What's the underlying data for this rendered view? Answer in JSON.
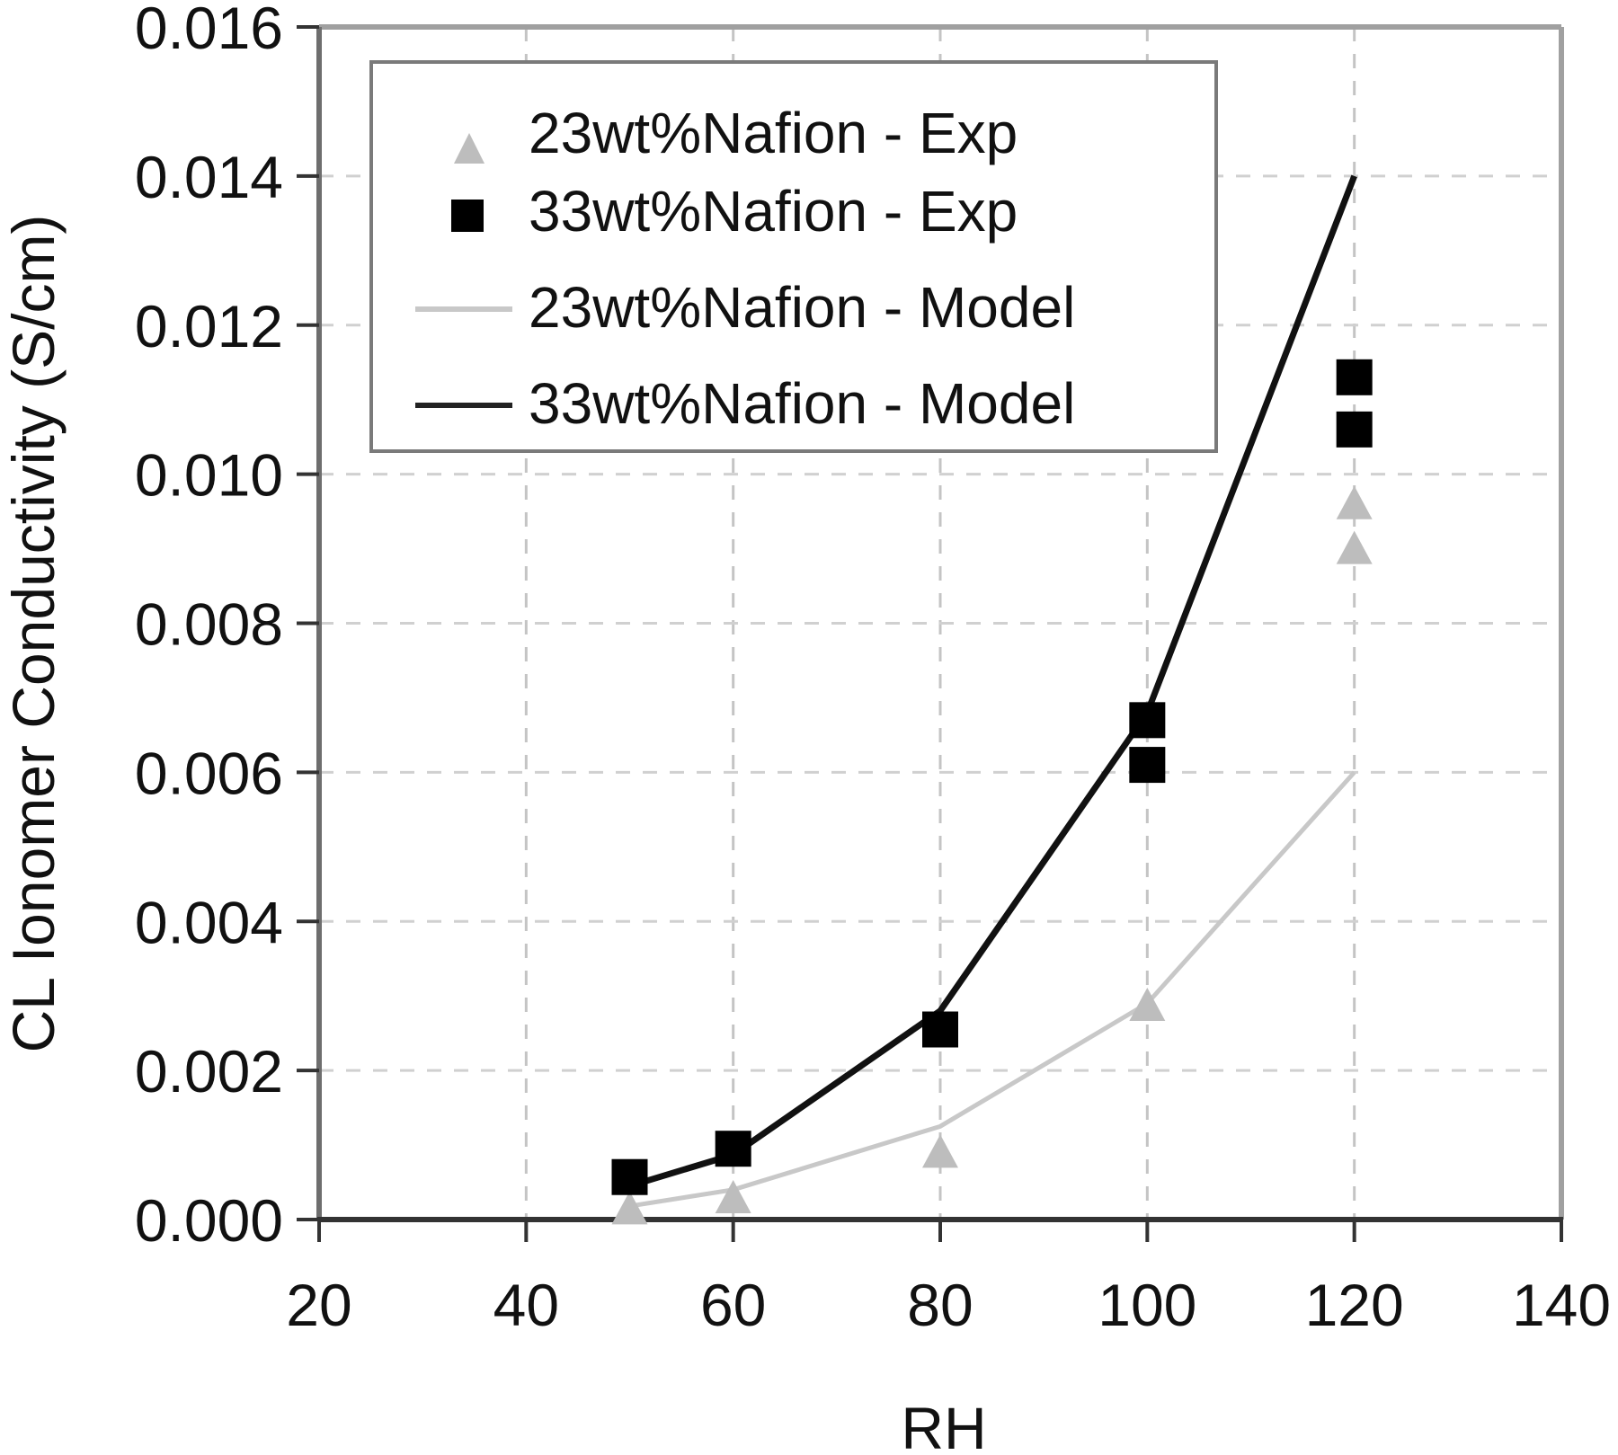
{
  "chart_data": {
    "type": "scatter",
    "title": "",
    "xlabel": "RH",
    "ylabel": "CL Ionomer Conductivity (S/cm)",
    "xlim": [
      20,
      140
    ],
    "ylim": [
      0,
      0.016
    ],
    "xticks": [
      20,
      40,
      60,
      80,
      100,
      120,
      140
    ],
    "xtick_labels": [
      "20",
      "40",
      "60",
      "80",
      "100",
      "120",
      "140"
    ],
    "yticks": [
      0,
      0.002,
      0.004,
      0.006,
      0.008,
      0.01,
      0.012,
      0.014,
      0.016
    ],
    "ytick_labels": [
      "0.000",
      "0.002",
      "0.004",
      "0.006",
      "0.008",
      "0.010",
      "0.012",
      "0.014",
      "0.016"
    ],
    "grid": true,
    "legend_position": "upper left (inside)",
    "series": [
      {
        "name": "23wt%Nafion - Exp",
        "kind": "markers",
        "marker": "triangle",
        "color": "#bdbdbd",
        "x": [
          50,
          60,
          80,
          100,
          120,
          120
        ],
        "y": [
          0.00014,
          0.00029,
          0.0009,
          0.00287,
          0.0096,
          0.009
        ]
      },
      {
        "name": "33wt%Nafion - Exp",
        "kind": "markers",
        "marker": "square",
        "color": "#000000",
        "x": [
          50,
          60,
          80,
          100,
          100,
          120,
          120
        ],
        "y": [
          0.00057,
          0.00095,
          0.00255,
          0.0067,
          0.0061,
          0.0113,
          0.0106
        ]
      },
      {
        "name": "23wt%Nafion - Model",
        "kind": "line",
        "color": "#c8c8c8",
        "x": [
          50,
          60,
          80,
          100,
          120
        ],
        "y": [
          0.00018,
          0.0004,
          0.00125,
          0.0029,
          0.006
        ]
      },
      {
        "name": "33wt%Nafion - Model",
        "kind": "line",
        "color": "#111111",
        "x": [
          50,
          60,
          80,
          100,
          120
        ],
        "y": [
          0.00045,
          0.00087,
          0.0028,
          0.0068,
          0.014
        ]
      }
    ]
  },
  "legend": {
    "items": [
      {
        "label": "23wt%Nafion - Exp"
      },
      {
        "label": "33wt%Nafion - Exp"
      },
      {
        "label": "23wt%Nafion - Model"
      },
      {
        "label": "33wt%Nafion - Model"
      }
    ]
  },
  "axes": {
    "x_title": "RH",
    "y_title": "CL Ionomer Conductivity (S/cm)"
  }
}
